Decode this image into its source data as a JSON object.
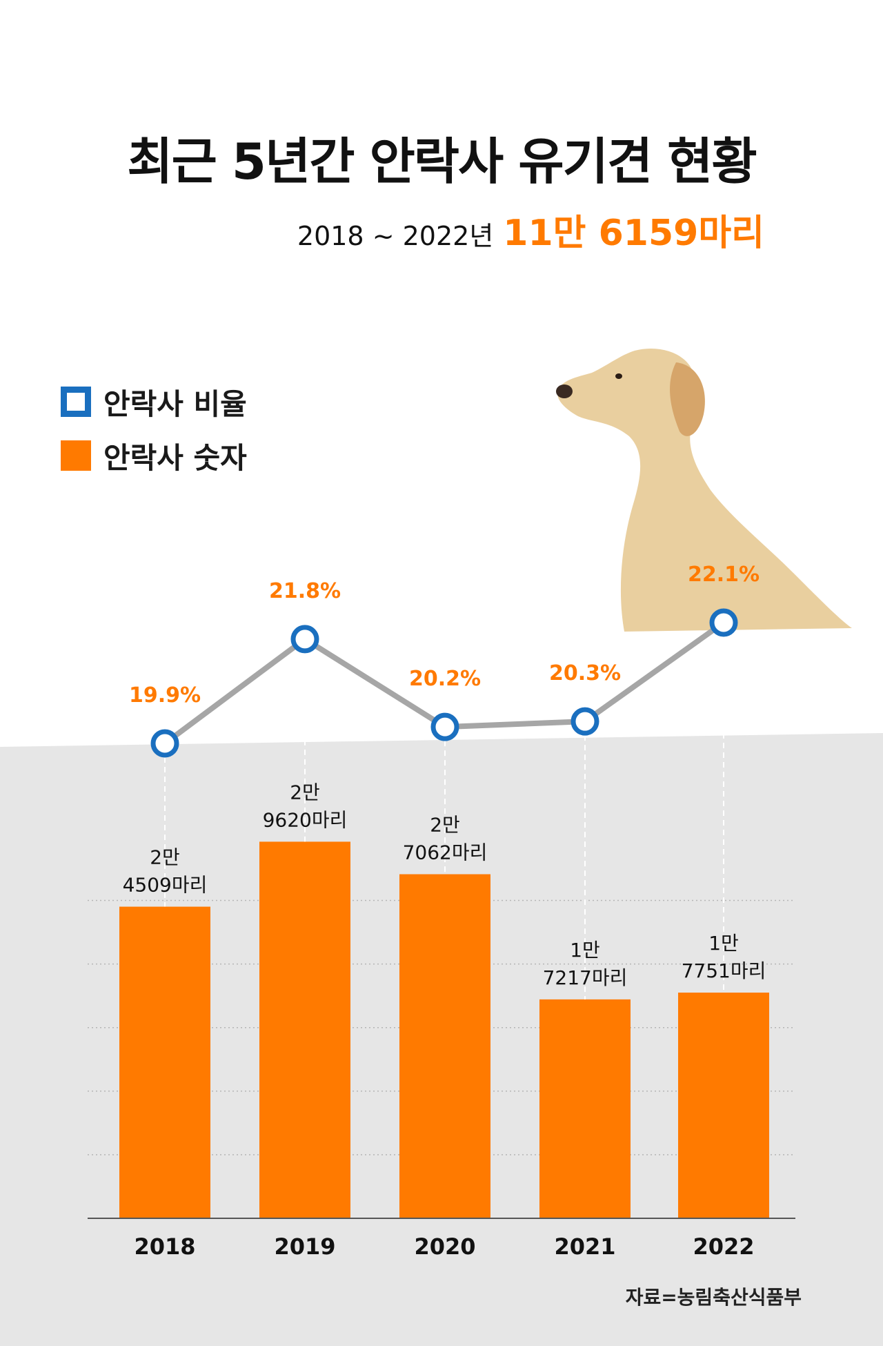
{
  "title": "최근 5년간 안락사 유기견 현황",
  "subtitle": {
    "prefix": "2018 ~ 2022년",
    "highlight": "11만 6159마리"
  },
  "legend": {
    "rate_label": "안락사 비율",
    "count_label": "안락사 숫자"
  },
  "source": "자료=농림축산식품부",
  "colors": {
    "bar": "#ff7a00",
    "rate_marker": "#1a6fbf",
    "line": "#a6a6a6",
    "rate_label": "#ff7a00",
    "background_band": "#e6e6e6"
  },
  "chart_data": {
    "type": "bar",
    "title": "최근 5년간 안락사 유기견 현황",
    "categories": [
      "2018",
      "2019",
      "2020",
      "2021",
      "2022"
    ],
    "series": [
      {
        "name": "안락사 숫자",
        "type": "bar",
        "values": [
          24509,
          29620,
          27062,
          17217,
          17751
        ],
        "labels": [
          [
            "2만",
            "4509마리"
          ],
          [
            "2만",
            "9620마리"
          ],
          [
            "2만",
            "7062마리"
          ],
          [
            "1만",
            "7217마리"
          ],
          [
            "1만",
            "7751마리"
          ]
        ]
      },
      {
        "name": "안락사 비율",
        "type": "line",
        "values": [
          19.9,
          21.8,
          20.2,
          20.3,
          22.1
        ],
        "labels": [
          "19.9%",
          "21.8%",
          "20.2%",
          "20.3%",
          "22.1%"
        ]
      }
    ],
    "xlabel": "",
    "ylabel": "",
    "ylim": [
      0,
      30000
    ],
    "rate_ylim": [
      17,
      23
    ],
    "grid": true
  }
}
